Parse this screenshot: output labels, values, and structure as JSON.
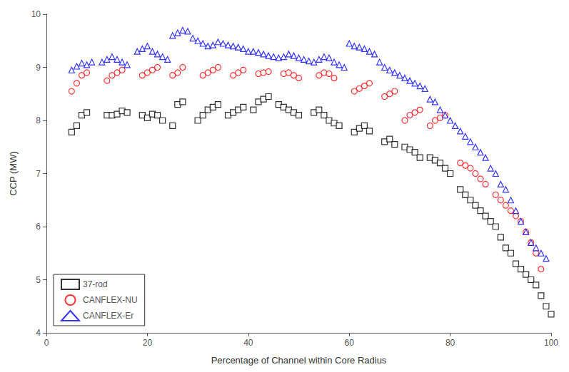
{
  "chart_data": {
    "type": "scatter",
    "xlabel": "Percentage of Channel within Core Radius",
    "ylabel": "CCP (MW)",
    "xlim": [
      0,
      100
    ],
    "ylim": [
      4,
      10
    ],
    "xticks": [
      0,
      20,
      40,
      60,
      80,
      100
    ],
    "yticks": [
      4,
      5,
      6,
      7,
      8,
      9,
      10
    ],
    "grid": false,
    "legend": "lower left",
    "series": [
      {
        "name": "37-rod",
        "color": "black",
        "marker": "square",
        "x": [
          5,
          6,
          7,
          8,
          12,
          13,
          14,
          15,
          16,
          19,
          20,
          21,
          22,
          23,
          25,
          26,
          27,
          30,
          31,
          32,
          33,
          34,
          36,
          37,
          38,
          39,
          41,
          42,
          43,
          44,
          46,
          47,
          48,
          49,
          50,
          53,
          54,
          55,
          56,
          57,
          58,
          61,
          62,
          63,
          64,
          67,
          68,
          69,
          71,
          72,
          73,
          74,
          76,
          77,
          78,
          79,
          80,
          82,
          83,
          84,
          85,
          86,
          87,
          88,
          89,
          90,
          91,
          92,
          93,
          94,
          95,
          96,
          97,
          98,
          99,
          100
        ],
        "values": [
          7.78,
          7.9,
          8.1,
          8.15,
          8.1,
          8.1,
          8.12,
          8.18,
          8.15,
          8.1,
          8.05,
          8.12,
          8.1,
          8.0,
          7.9,
          8.3,
          8.35,
          8.0,
          8.1,
          8.2,
          8.25,
          8.3,
          8.1,
          8.15,
          8.2,
          8.25,
          8.2,
          8.35,
          8.4,
          8.45,
          8.3,
          8.25,
          8.2,
          8.15,
          8.1,
          8.15,
          8.2,
          8.1,
          8.0,
          7.95,
          7.9,
          7.78,
          7.85,
          7.9,
          7.8,
          7.6,
          7.65,
          7.55,
          7.5,
          7.45,
          7.4,
          7.3,
          7.3,
          7.25,
          7.2,
          7.1,
          7.0,
          6.7,
          6.6,
          6.5,
          6.4,
          6.3,
          6.2,
          6.1,
          6.0,
          5.8,
          5.6,
          5.5,
          5.3,
          5.2,
          5.1,
          5.0,
          4.9,
          4.7,
          4.5,
          4.35
        ]
      },
      {
        "name": "CANFLEX-NU",
        "color": "red",
        "marker": "circle",
        "x": [
          5,
          6,
          7,
          8,
          12,
          13,
          14,
          15,
          19,
          20,
          21,
          22,
          25,
          26,
          27,
          31,
          32,
          33,
          34,
          37,
          38,
          39,
          42,
          43,
          44,
          47,
          48,
          49,
          50,
          54,
          55,
          56,
          57,
          61,
          62,
          63,
          64,
          67,
          68,
          69,
          71,
          72,
          73,
          74,
          76,
          77,
          78,
          79,
          82,
          83,
          84,
          85,
          86,
          87,
          89,
          90,
          91,
          92,
          93,
          94,
          95,
          96,
          97,
          98
        ],
        "values": [
          8.55,
          8.7,
          8.85,
          8.9,
          8.75,
          8.85,
          8.9,
          8.95,
          8.85,
          8.9,
          8.95,
          9.0,
          8.85,
          8.9,
          9.0,
          8.85,
          8.9,
          8.95,
          9.0,
          8.85,
          8.9,
          8.95,
          8.88,
          8.9,
          8.92,
          8.88,
          8.9,
          8.85,
          8.8,
          8.85,
          8.9,
          8.88,
          8.8,
          8.55,
          8.6,
          8.65,
          8.7,
          8.45,
          8.5,
          8.55,
          8.0,
          8.1,
          8.15,
          8.2,
          7.9,
          8.0,
          8.05,
          8.1,
          7.2,
          7.15,
          7.1,
          7.0,
          6.9,
          6.8,
          6.6,
          6.5,
          6.4,
          6.3,
          6.2,
          6.1,
          5.9,
          5.7,
          5.5,
          5.2
        ]
      },
      {
        "name": "CANFLEX-Er",
        "color": "blue",
        "marker": "triangle",
        "x": [
          5,
          6,
          7,
          8,
          9,
          11,
          12,
          13,
          14,
          15,
          16,
          18,
          19,
          20,
          21,
          22,
          23,
          24,
          25,
          26,
          27,
          28,
          29,
          30,
          31,
          32,
          33,
          34,
          35,
          36,
          37,
          38,
          39,
          40,
          41,
          42,
          43,
          44,
          45,
          46,
          47,
          48,
          49,
          50,
          51,
          52,
          53,
          54,
          55,
          56,
          57,
          58,
          59,
          60,
          61,
          62,
          63,
          64,
          65,
          66,
          67,
          68,
          69,
          70,
          71,
          72,
          73,
          74,
          75,
          76,
          77,
          78,
          79,
          80,
          81,
          82,
          83,
          84,
          85,
          86,
          87,
          88,
          89,
          90,
          91,
          92,
          93,
          94,
          95,
          96,
          97,
          98,
          99
        ],
        "values": [
          8.95,
          9.02,
          9.08,
          9.05,
          9.1,
          9.1,
          9.15,
          9.2,
          9.15,
          9.1,
          9.05,
          9.3,
          9.35,
          9.4,
          9.3,
          9.25,
          9.2,
          9.15,
          9.6,
          9.65,
          9.7,
          9.68,
          9.55,
          9.5,
          9.45,
          9.4,
          9.42,
          9.48,
          9.45,
          9.42,
          9.4,
          9.38,
          9.35,
          9.3,
          9.3,
          9.28,
          9.25,
          9.22,
          9.2,
          9.18,
          9.2,
          9.25,
          9.22,
          9.18,
          9.15,
          9.12,
          9.1,
          9.15,
          9.2,
          9.18,
          9.1,
          9.05,
          9.0,
          9.45,
          9.4,
          9.38,
          9.35,
          9.3,
          9.25,
          9.1,
          9.0,
          8.95,
          8.9,
          8.85,
          8.8,
          8.75,
          8.7,
          8.65,
          8.6,
          8.4,
          8.35,
          8.2,
          8.1,
          8.0,
          7.9,
          7.8,
          7.7,
          7.6,
          7.5,
          7.4,
          7.3,
          7.1,
          7.0,
          6.8,
          6.7,
          6.5,
          6.3,
          6.1,
          5.9,
          5.7,
          5.6,
          5.5,
          5.4
        ]
      }
    ]
  }
}
